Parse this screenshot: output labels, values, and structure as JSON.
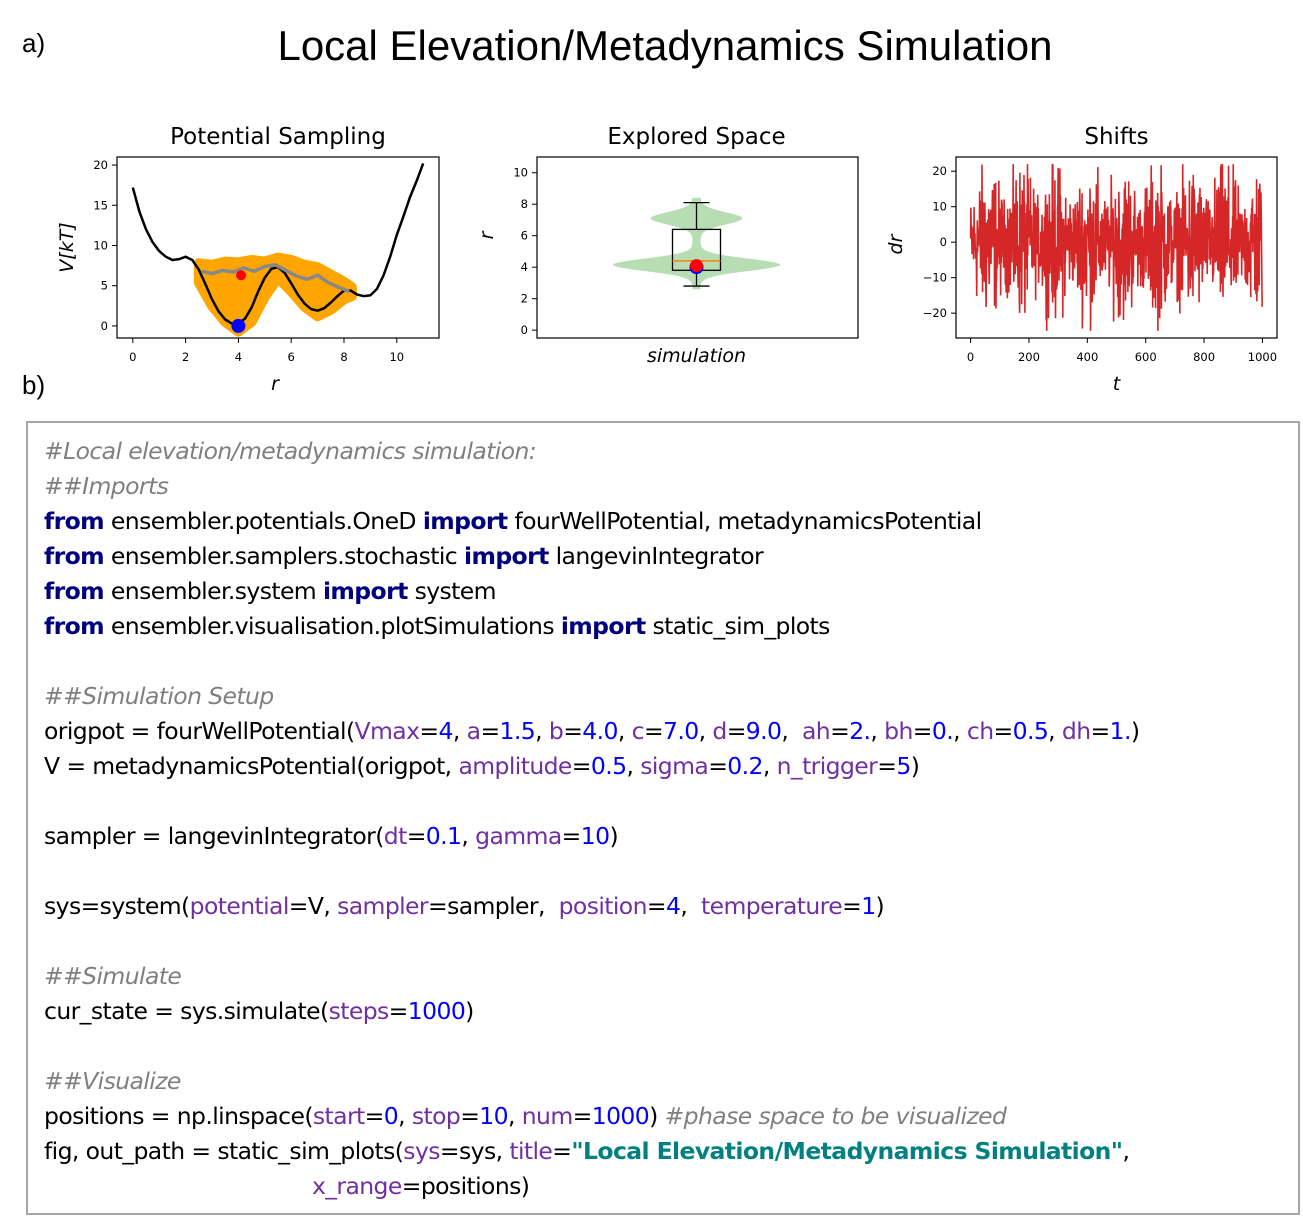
{
  "labels": {
    "panel_a": "a)",
    "panel_b": "b)"
  },
  "title": "Local Elevation/Metadynamics Simulation",
  "chart_data": [
    {
      "type": "line",
      "title": "Potential Sampling",
      "xlabel": "r",
      "ylabel": "V[kT]",
      "xlim": [
        -0.6,
        11.6
      ],
      "ylim": [
        -1.5,
        21
      ],
      "xticks": [
        "0",
        "2",
        "4",
        "6",
        "8",
        "10"
      ],
      "yticks": [
        "0",
        "5",
        "10",
        "15",
        "20"
      ],
      "series": [
        {
          "color": "#000000",
          "x": [
            0,
            0.25,
            0.5,
            0.75,
            1,
            1.25,
            1.5,
            1.75,
            2,
            2.25,
            2.5,
            2.75,
            3,
            3.25,
            3.5,
            3.75,
            4,
            4.25,
            4.5,
            4.75,
            5,
            5.25,
            5.5,
            5.75,
            6,
            6.25,
            6.5,
            6.75,
            7,
            7.25,
            7.5,
            7.75,
            8,
            8.25,
            8.5,
            8.75,
            9,
            9.25,
            9.5,
            9.75,
            10,
            10.25,
            10.5,
            10.75,
            11
          ],
          "y": [
            17.2,
            14.2,
            12.0,
            10.4,
            9.3,
            8.6,
            8.2,
            8.3,
            8.6,
            8.2,
            7.0,
            5.2,
            3.3,
            1.8,
            0.8,
            0.3,
            0.3,
            0.9,
            2.3,
            4.3,
            6.0,
            7.1,
            7.3,
            6.6,
            5.3,
            3.9,
            2.8,
            2.1,
            1.9,
            2.2,
            2.9,
            3.7,
            4.4,
            4.4,
            3.9,
            3.7,
            3.8,
            4.6,
            6.3,
            8.6,
            11.3,
            13.6,
            16.0,
            18.0,
            20.2
          ]
        },
        {
          "color": "#888888",
          "x": [
            2.6,
            3.0,
            3.4,
            3.8,
            4.2,
            4.6,
            5.0,
            5.4,
            5.8,
            6.2,
            6.6,
            7.0,
            7.4,
            7.8,
            8.2
          ],
          "y": [
            6.8,
            6.5,
            6.9,
            6.7,
            7.2,
            6.8,
            7.4,
            7.6,
            6.9,
            6.2,
            5.8,
            6.3,
            5.4,
            4.8,
            4.3
          ]
        }
      ],
      "fill_band": {
        "color": "#ffa500",
        "x": [
          2.5,
          3,
          3.5,
          4,
          4.5,
          5,
          5.5,
          6,
          6.5,
          7,
          7.5,
          8,
          8.3
        ],
        "upper": [
          7.8,
          7.6,
          8.0,
          7.9,
          8.2,
          8.0,
          8.5,
          8.2,
          7.6,
          7.3,
          6.4,
          5.5,
          4.8
        ],
        "lower": [
          5.4,
          2.5,
          0.5,
          -0.7,
          0.5,
          3.6,
          6.0,
          4.3,
          2.4,
          1.2,
          2.0,
          3.3,
          3.7
        ]
      },
      "markers": [
        {
          "label": "start",
          "x": 4.0,
          "y": 0.0,
          "color": "#0000ff"
        },
        {
          "label": "end",
          "x": 4.1,
          "y": 6.3,
          "color": "#ff0000"
        }
      ]
    },
    {
      "type": "violin",
      "title": "Explored Space",
      "xlabel": "simulation",
      "ylabel": "r",
      "ylim": [
        -0.5,
        11.0
      ],
      "yticks": [
        "0",
        "2",
        "4",
        "6",
        "8",
        "10"
      ],
      "box": {
        "whisker_low": 2.8,
        "q1": 3.8,
        "median": 4.4,
        "q3": 6.4,
        "whisker_high": 8.1
      },
      "colors": {
        "violin": "#9fd39a",
        "median": "#ff7f0e"
      },
      "markers": [
        {
          "label": "start",
          "y": 4.0,
          "color": "#0000ff"
        },
        {
          "label": "end",
          "y": 4.1,
          "color": "#ff0000"
        }
      ]
    },
    {
      "type": "line",
      "title": "Shifts",
      "xlabel": "t",
      "ylabel": "dr",
      "xlim": [
        -50,
        1050
      ],
      "ylim": [
        -27,
        24
      ],
      "xticks": [
        "0",
        "200",
        "400",
        "600",
        "800",
        "1000"
      ],
      "yticks": [
        "−20",
        "−10",
        "0",
        "10",
        "20"
      ],
      "series": [
        {
          "color": "#d62728",
          "amplitude": 8,
          "y_range": [
            -25,
            22
          ],
          "n": 1000
        }
      ]
    }
  ],
  "code": {
    "lines": [
      [
        {
          "t": "#Local elevation/metadynamics simulation:",
          "c": "cm"
        }
      ],
      [
        {
          "t": "##Imports",
          "c": "cm"
        }
      ],
      [
        {
          "t": "from",
          "c": "kw"
        },
        {
          "t": " ensembler.potentials.OneD ",
          "c": ""
        },
        {
          "t": "import",
          "c": "kw"
        },
        {
          "t": " fourWellPotential, metadynamicsPotential",
          "c": ""
        }
      ],
      [
        {
          "t": "from",
          "c": "kw"
        },
        {
          "t": " ensembler.samplers.stochastic ",
          "c": ""
        },
        {
          "t": "import",
          "c": "kw"
        },
        {
          "t": " langevinIntegrator",
          "c": ""
        }
      ],
      [
        {
          "t": "from",
          "c": "kw"
        },
        {
          "t": " ensembler.system ",
          "c": ""
        },
        {
          "t": "import",
          "c": "kw"
        },
        {
          "t": " system",
          "c": ""
        }
      ],
      [
        {
          "t": "from",
          "c": "kw"
        },
        {
          "t": " ensembler.visualisation.plotSimulations ",
          "c": ""
        },
        {
          "t": "import",
          "c": "kw"
        },
        {
          "t": " static_sim_plots",
          "c": ""
        }
      ],
      [],
      [
        {
          "t": "##Simulation Setup",
          "c": "cm"
        }
      ],
      [
        {
          "t": "origpot = fourWellPotential(",
          "c": ""
        },
        {
          "t": "Vmax",
          "c": "pn"
        },
        {
          "t": "=",
          "c": ""
        },
        {
          "t": "4",
          "c": "nm"
        },
        {
          "t": ", ",
          "c": ""
        },
        {
          "t": "a",
          "c": "pn"
        },
        {
          "t": "=",
          "c": ""
        },
        {
          "t": "1.5",
          "c": "nm"
        },
        {
          "t": ", ",
          "c": ""
        },
        {
          "t": "b",
          "c": "pn"
        },
        {
          "t": "=",
          "c": ""
        },
        {
          "t": "4.0",
          "c": "nm"
        },
        {
          "t": ", ",
          "c": ""
        },
        {
          "t": "c",
          "c": "pn"
        },
        {
          "t": "=",
          "c": ""
        },
        {
          "t": "7.0",
          "c": "nm"
        },
        {
          "t": ", ",
          "c": ""
        },
        {
          "t": "d",
          "c": "pn"
        },
        {
          "t": "=",
          "c": ""
        },
        {
          "t": "9.0",
          "c": "nm"
        },
        {
          "t": ",  ",
          "c": ""
        },
        {
          "t": "ah",
          "c": "pn"
        },
        {
          "t": "=",
          "c": ""
        },
        {
          "t": "2.",
          "c": "nm"
        },
        {
          "t": ", ",
          "c": ""
        },
        {
          "t": "bh",
          "c": "pn"
        },
        {
          "t": "=",
          "c": ""
        },
        {
          "t": "0.",
          "c": "nm"
        },
        {
          "t": ", ",
          "c": ""
        },
        {
          "t": "ch",
          "c": "pn"
        },
        {
          "t": "=",
          "c": ""
        },
        {
          "t": "0.5",
          "c": "nm"
        },
        {
          "t": ", ",
          "c": ""
        },
        {
          "t": "dh",
          "c": "pn"
        },
        {
          "t": "=",
          "c": ""
        },
        {
          "t": "1.",
          "c": "nm"
        },
        {
          "t": ")",
          "c": ""
        }
      ],
      [
        {
          "t": "V = metadynamicsPotential(origpot, ",
          "c": ""
        },
        {
          "t": "amplitude",
          "c": "pn"
        },
        {
          "t": "=",
          "c": ""
        },
        {
          "t": "0.5",
          "c": "nm"
        },
        {
          "t": ", ",
          "c": ""
        },
        {
          "t": "sigma",
          "c": "pn"
        },
        {
          "t": "=",
          "c": ""
        },
        {
          "t": "0.2",
          "c": "nm"
        },
        {
          "t": ", ",
          "c": ""
        },
        {
          "t": "n_trigger",
          "c": "pn"
        },
        {
          "t": "=",
          "c": ""
        },
        {
          "t": "5",
          "c": "nm"
        },
        {
          "t": ")",
          "c": ""
        }
      ],
      [],
      [
        {
          "t": "sampler = langevinIntegrator(",
          "c": ""
        },
        {
          "t": "dt",
          "c": "pn"
        },
        {
          "t": "=",
          "c": ""
        },
        {
          "t": "0.1",
          "c": "nm"
        },
        {
          "t": ", ",
          "c": ""
        },
        {
          "t": "gamma",
          "c": "pn"
        },
        {
          "t": "=",
          "c": ""
        },
        {
          "t": "10",
          "c": "nm"
        },
        {
          "t": ")",
          "c": ""
        }
      ],
      [],
      [
        {
          "t": "sys=system(",
          "c": ""
        },
        {
          "t": "potential",
          "c": "pn"
        },
        {
          "t": "=V, ",
          "c": ""
        },
        {
          "t": "sampler",
          "c": "pn"
        },
        {
          "t": "=sampler,  ",
          "c": ""
        },
        {
          "t": "position",
          "c": "pn"
        },
        {
          "t": "=",
          "c": ""
        },
        {
          "t": "4",
          "c": "nm"
        },
        {
          "t": ",  ",
          "c": ""
        },
        {
          "t": "temperature",
          "c": "pn"
        },
        {
          "t": "=",
          "c": ""
        },
        {
          "t": "1",
          "c": "nm"
        },
        {
          "t": ")",
          "c": ""
        }
      ],
      [],
      [
        {
          "t": "##Simulate",
          "c": "cm"
        }
      ],
      [
        {
          "t": "cur_state = sys.simulate(",
          "c": ""
        },
        {
          "t": "steps",
          "c": "pn"
        },
        {
          "t": "=",
          "c": ""
        },
        {
          "t": "1000",
          "c": "nm"
        },
        {
          "t": ")",
          "c": ""
        }
      ],
      [],
      [
        {
          "t": "##Visualize",
          "c": "cm"
        }
      ],
      [
        {
          "t": "positions = np.linspace(",
          "c": ""
        },
        {
          "t": "start",
          "c": "pn"
        },
        {
          "t": "=",
          "c": ""
        },
        {
          "t": "0",
          "c": "nm"
        },
        {
          "t": ", ",
          "c": ""
        },
        {
          "t": "stop",
          "c": "pn"
        },
        {
          "t": "=",
          "c": ""
        },
        {
          "t": "10",
          "c": "nm"
        },
        {
          "t": ", ",
          "c": ""
        },
        {
          "t": "num",
          "c": "pn"
        },
        {
          "t": "=",
          "c": ""
        },
        {
          "t": "1000",
          "c": "nm"
        },
        {
          "t": ") ",
          "c": ""
        },
        {
          "t": "#phase space to be visualized",
          "c": "cm"
        }
      ],
      [
        {
          "t": "fig, out_path = static_sim_plots(",
          "c": ""
        },
        {
          "t": "sys",
          "c": "pn"
        },
        {
          "t": "=sys, ",
          "c": ""
        },
        {
          "t": "title",
          "c": "pn"
        },
        {
          "t": "=",
          "c": ""
        },
        {
          "t": "\"Local Elevation/Metadynamics Simulation\"",
          "c": "st"
        },
        {
          "t": ",",
          "c": ""
        }
      ],
      [
        {
          "t": "                                       ",
          "c": ""
        },
        {
          "t": "x_range",
          "c": "pn"
        },
        {
          "t": "=positions)",
          "c": ""
        }
      ]
    ]
  }
}
